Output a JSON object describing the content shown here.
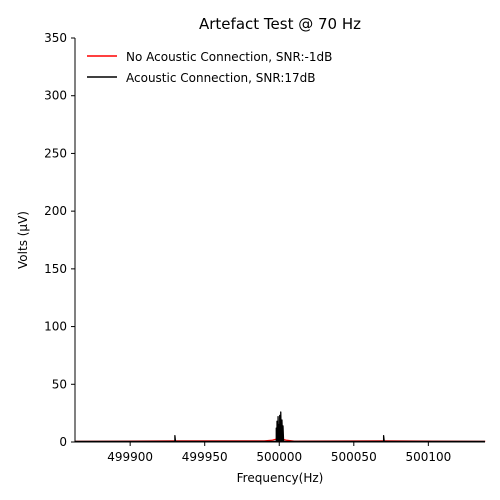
{
  "chart_data": {
    "type": "line",
    "title": "Artefact Test @ 70 Hz",
    "xlabel": "Frequency(Hz)",
    "ylabel": "Volts (μV)",
    "xlim": [
      499863,
      500138
    ],
    "ylim": [
      0,
      350
    ],
    "xticks": [
      499900,
      499950,
      500000,
      500050,
      500100
    ],
    "yticks": [
      0,
      50,
      100,
      150,
      200,
      250,
      300,
      350
    ],
    "grid": false,
    "legend_position": "top-left",
    "series": [
      {
        "name": "No Acoustic Connection, SNR:-1dB",
        "color": "#ff0000",
        "baseline": 0.5,
        "points": [
          [
            499863,
            0.6
          ],
          [
            499930,
            1.0
          ],
          [
            499990,
            1.0
          ],
          [
            499995,
            1.5
          ],
          [
            499998,
            2.5
          ],
          [
            500000,
            3.5
          ],
          [
            500002,
            2.5
          ],
          [
            500005,
            1.5
          ],
          [
            500010,
            0.8
          ],
          [
            500070,
            1.0
          ],
          [
            500138,
            0.6
          ]
        ]
      },
      {
        "name": "Acoustic Connection, SNR:17dB",
        "color": "#000000",
        "baseline": 0.5,
        "points": [
          [
            499930,
            5.5
          ],
          [
            499998,
            12
          ],
          [
            499998.5,
            18
          ],
          [
            499999.2,
            22
          ],
          [
            499999.8,
            15
          ],
          [
            500000.3,
            23
          ],
          [
            500001,
            26
          ],
          [
            500001.8,
            19
          ],
          [
            500002.5,
            14
          ],
          [
            500070,
            5.5
          ]
        ]
      }
    ]
  }
}
